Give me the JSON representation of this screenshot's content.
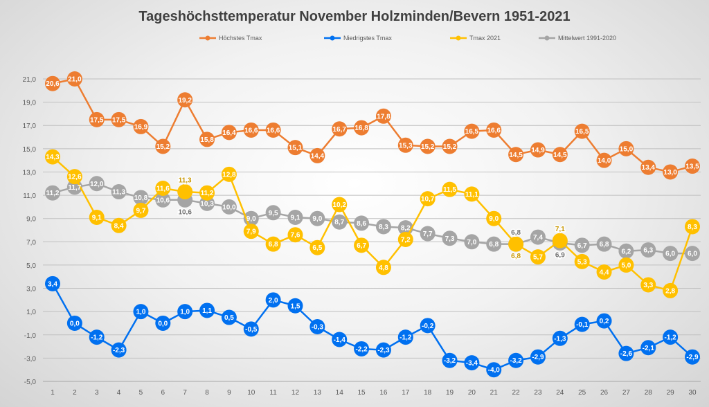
{
  "chart_data": {
    "type": "line",
    "title": "Tageshöchsttemperatur November Holzminden/Bevern 1951-2021",
    "xlabel": "",
    "ylabel": "",
    "x": [
      1,
      2,
      3,
      4,
      5,
      6,
      7,
      8,
      9,
      10,
      11,
      12,
      13,
      14,
      15,
      16,
      17,
      18,
      19,
      20,
      21,
      22,
      23,
      24,
      25,
      26,
      27,
      28,
      29,
      30
    ],
    "ylim": [
      -5,
      21
    ],
    "yticks": [
      -5,
      -3,
      -1,
      1,
      3,
      5,
      7,
      9,
      11,
      13,
      15,
      17,
      19,
      21
    ],
    "grid": true,
    "legend_position": "top",
    "decimal_separator": ",",
    "series": [
      {
        "name": "Höchstes Tmax",
        "color": "#ED7D31",
        "values": [
          20.6,
          21.0,
          17.5,
          17.5,
          16.9,
          15.2,
          19.2,
          15.8,
          16.4,
          16.6,
          16.6,
          15.1,
          14.4,
          16.7,
          16.8,
          17.8,
          15.3,
          15.2,
          15.2,
          16.5,
          16.6,
          14.5,
          14.9,
          14.5,
          16.5,
          14.0,
          15.0,
          13.4,
          13.0,
          13.5
        ]
      },
      {
        "name": "Niedrigstes Tmax",
        "color": "#0070F0",
        "values": [
          3.4,
          0.0,
          -1.2,
          -2.3,
          1.0,
          0.0,
          1.0,
          1.1,
          0.5,
          -0.5,
          2.0,
          1.5,
          -0.3,
          -1.4,
          -2.2,
          -2.3,
          -1.2,
          -0.2,
          -3.2,
          -3.4,
          -4.0,
          -3.2,
          -2.9,
          -1.3,
          -0.1,
          0.2,
          -2.6,
          -2.1,
          -1.2,
          -2.9
        ]
      },
      {
        "name": "Tmax 2021",
        "color": "#FFC000",
        "values": [
          14.3,
          12.6,
          9.1,
          8.4,
          9.7,
          11.6,
          11.3,
          11.2,
          12.8,
          7.9,
          6.8,
          7.6,
          6.5,
          10.2,
          6.7,
          4.8,
          7.2,
          10.7,
          11.5,
          11.1,
          9.0,
          6.8,
          5.7,
          7.1,
          5.3,
          4.4,
          5.0,
          3.3,
          2.8,
          8.3
        ]
      },
      {
        "name": "Mittelwert 1991-2020",
        "color": "#A5A5A5",
        "values": [
          11.2,
          11.7,
          12.0,
          11.3,
          10.8,
          10.6,
          10.6,
          10.3,
          10.0,
          9.0,
          9.5,
          9.1,
          9.0,
          8.7,
          8.6,
          8.3,
          8.2,
          7.7,
          7.3,
          7.0,
          6.8,
          6.8,
          7.4,
          6.9,
          6.7,
          6.8,
          6.2,
          6.3,
          6.0,
          6.0
        ]
      }
    ]
  }
}
